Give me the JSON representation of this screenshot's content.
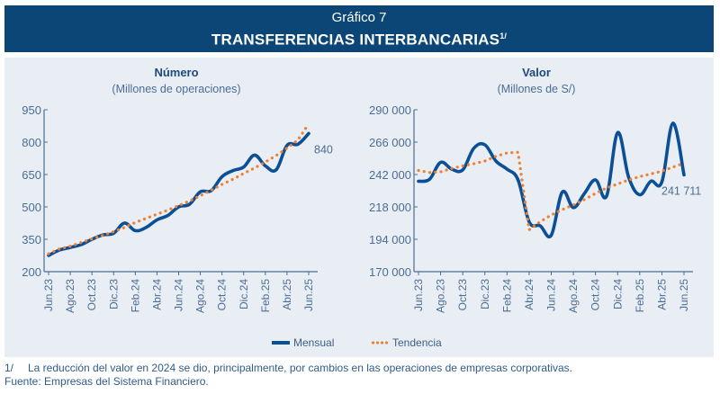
{
  "header": {
    "subtitle": "Gráfico 7",
    "title": "TRANSFERENCIAS INTERBANCARIAS",
    "title_note": "1/"
  },
  "legend": {
    "mensual": "Mensual",
    "tendencia": "Tendencia"
  },
  "footnotes": {
    "note_num": "1/",
    "note_text": "La reducción del valor en 2024 se dio, principalmente, por cambios en las operaciones de empresas corporativas.",
    "source": "Fuente: Empresas del Sistema Financiero."
  },
  "colors": {
    "header_bg": "#0b4677",
    "mensual": "#0b4f96",
    "tendencia": "#ef7f31",
    "axis": "#4a6d94",
    "panel_bg": "#e9eef5"
  },
  "chart_data": [
    {
      "type": "line",
      "title": "Número",
      "subtitle": "(Millones de operaciones)",
      "ylim": [
        200,
        950
      ],
      "yticks": [
        "950",
        "800",
        "650",
        "500",
        "350",
        "200"
      ],
      "ytick_values": [
        950,
        800,
        650,
        500,
        350,
        200
      ],
      "xtick_labels": [
        "Jun.23",
        "Ago.23",
        "Oct.23",
        "Dic.23",
        "Feb.24",
        "Abr.24",
        "Jun.24",
        "Ago.24",
        "Oct.24",
        "Dic.24",
        "Feb.25",
        "Abr.25",
        "Jun.25"
      ],
      "x": [
        "Jun.23",
        "Jul.23",
        "Ago.23",
        "Set.23",
        "Oct.23",
        "Nov.23",
        "Dic.23",
        "Ene.24",
        "Feb.24",
        "Mar.24",
        "Abr.24",
        "May.24",
        "Jun.24",
        "Jul.24",
        "Ago.24",
        "Set.24",
        "Oct.24",
        "Nov.24",
        "Dic.24",
        "Ene.25",
        "Feb.25",
        "Mar.25",
        "Abr.25",
        "May.25",
        "Jun.25"
      ],
      "series": [
        {
          "name": "Mensual",
          "values": [
            275,
            300,
            312,
            325,
            350,
            370,
            378,
            425,
            390,
            405,
            440,
            460,
            500,
            512,
            570,
            575,
            640,
            668,
            685,
            740,
            690,
            672,
            785,
            790,
            840
          ],
          "style": "solid"
        },
        {
          "name": "Tendencia",
          "values": [
            283,
            305,
            318,
            335,
            352,
            368,
            385,
            405,
            428,
            447,
            466,
            485,
            506,
            527,
            552,
            577,
            604,
            628,
            655,
            680,
            708,
            738,
            772,
            810,
            885
          ],
          "style": "dotted"
        }
      ],
      "annotations": [
        {
          "text": "840",
          "at": "Jun.25"
        }
      ],
      "grid": false
    },
    {
      "type": "line",
      "title": "Valor",
      "subtitle": "(Millones de S/)",
      "ylim": [
        170000,
        290000
      ],
      "yticks": [
        "290 000",
        "266 000",
        "242 000",
        "218 000",
        "194 000",
        "170 000"
      ],
      "ytick_values": [
        290000,
        266000,
        242000,
        218000,
        194000,
        170000
      ],
      "xtick_labels": [
        "Jun.23",
        "Ago.23",
        "Oct.23",
        "Dic.23",
        "Feb.24",
        "Abr.24",
        "Jun.24",
        "Ago.24",
        "Oct.24",
        "Dic.24",
        "Feb.25",
        "Abr.25",
        "Jun.25"
      ],
      "x": [
        "Jun.23",
        "Jul.23",
        "Ago.23",
        "Set.23",
        "Oct.23",
        "Nov.23",
        "Dic.23",
        "Ene.24",
        "Feb.24",
        "Mar.24",
        "Abr.24",
        "May.24",
        "Jun.24",
        "Jul.24",
        "Ago.24",
        "Set.24",
        "Oct.24",
        "Nov.24",
        "Dic.24",
        "Ene.25",
        "Feb.25",
        "Mar.25",
        "Abr.25",
        "May.25",
        "Jun.25"
      ],
      "series": [
        {
          "name": "Mensual",
          "values": [
            237000,
            238500,
            251000,
            246000,
            245500,
            261500,
            264000,
            252000,
            246000,
            238000,
            207000,
            204000,
            197000,
            229000,
            217500,
            228000,
            238000,
            226000,
            273000,
            240000,
            227000,
            237000,
            236500,
            280000,
            241711
          ],
          "style": "solid"
        },
        {
          "name": "Tendencia",
          "values": [
            245000,
            243500,
            244000,
            246500,
            248500,
            250000,
            252000,
            255500,
            258000,
            258500,
            201000,
            207000,
            212000,
            216000,
            219500,
            223500,
            228000,
            232000,
            235000,
            238000,
            240500,
            242500,
            244500,
            247500,
            250500
          ],
          "style": "dotted"
        }
      ],
      "annotations": [
        {
          "text": "241 711",
          "at": "Jun.25"
        }
      ],
      "grid": false
    }
  ]
}
